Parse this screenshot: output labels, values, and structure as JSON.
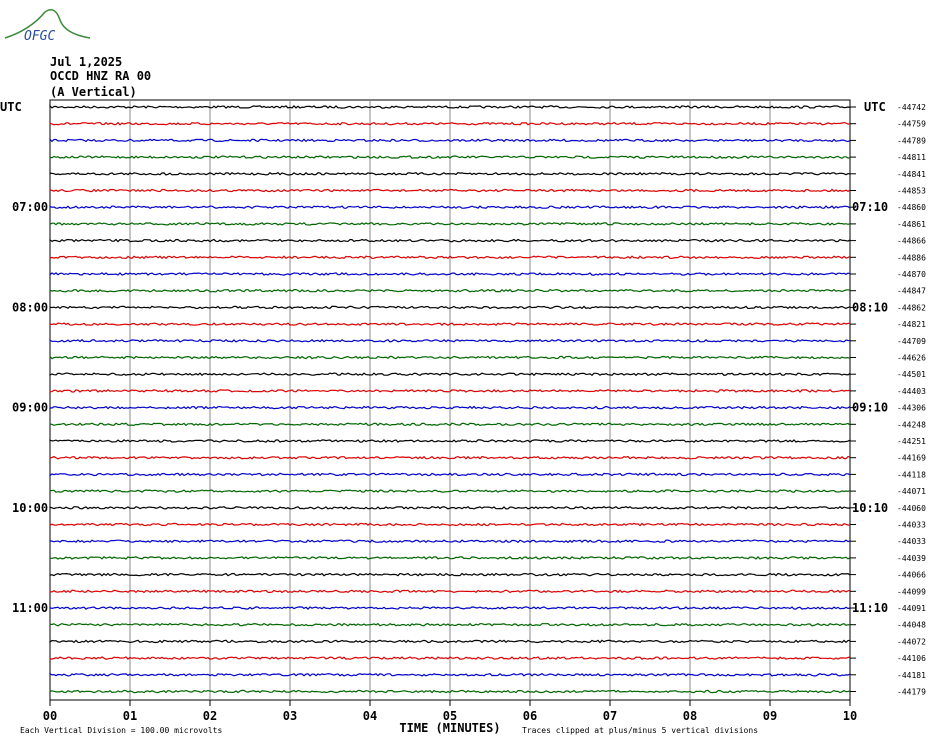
{
  "logo": "OFGC",
  "header": {
    "date": "Jul 1,2025",
    "station": "OCCD HNZ RA 00",
    "component": "(A Vertical)"
  },
  "left_axis": {
    "title": "UTC",
    "labels": [
      "07:00",
      "08:00",
      "09:00",
      "10:00",
      "11:00"
    ]
  },
  "right_axis": {
    "title": "UTC",
    "labels": [
      "07:10",
      "08:10",
      "09:10",
      "10:10",
      "11:10"
    ]
  },
  "trace_offsets": [
    "-44742",
    "-44759",
    "-44789",
    "-44811",
    "-44841",
    "-44853",
    "-44860",
    "-44861",
    "-44866",
    "-44886",
    "-44870",
    "-44847",
    "-44862",
    "-44821",
    "-44709",
    "-44626",
    "-44501",
    "-44403",
    "-44306",
    "-44248",
    "-44251",
    "-44169",
    "-44118",
    "-44071",
    "-44060",
    "-44033",
    "-44033",
    "-44039",
    "-44066",
    "-44099",
    "-44091",
    "-44048",
    "-44072",
    "-44106",
    "-44181",
    "-44179"
  ],
  "x_axis": {
    "title": "TIME (MINUTES)",
    "ticks": [
      "00",
      "01",
      "02",
      "03",
      "04",
      "05",
      "06",
      "07",
      "08",
      "09",
      "10"
    ]
  },
  "footer": {
    "scale_note": "Each Vertical Division =  100.00 microvolts",
    "clip_note": "Traces clipped at plus/minus 5 vertical divisions"
  }
}
